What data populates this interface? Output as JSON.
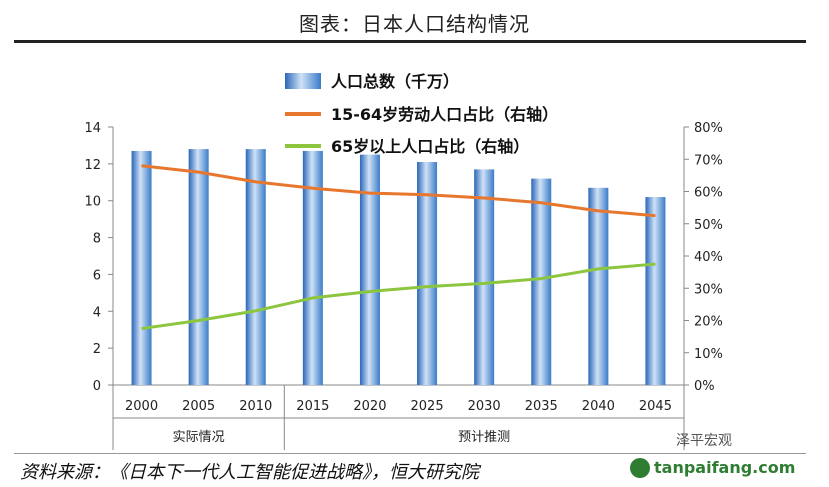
{
  "title": "图表：日本人口结构情况",
  "source": "资料来源：《日本下一代人工智能促进战略》，恒大研究院",
  "watermark": {
    "wechat": "泽平宏观",
    "site": "tanpaifang.com"
  },
  "chart_data": {
    "type": "bar",
    "categories": [
      "2000",
      "2005",
      "2010",
      "2015",
      "2020",
      "2025",
      "2030",
      "2035",
      "2040",
      "2045"
    ],
    "groups": [
      {
        "label": "实际情况",
        "from": 0,
        "to": 2
      },
      {
        "label": "预计推测",
        "from": 3,
        "to": 9
      }
    ],
    "series": [
      {
        "name": "人口总数（千万）",
        "type": "bar",
        "axis": "left",
        "color": "#3a7bc8",
        "values": [
          12.7,
          12.8,
          12.8,
          12.7,
          12.5,
          12.1,
          11.7,
          11.2,
          10.7,
          10.2
        ]
      },
      {
        "name": "15-64岁劳动人口占比（右轴）",
        "type": "line",
        "axis": "right",
        "color": "#e8772e",
        "values": [
          68,
          66,
          63,
          61,
          59.5,
          59,
          58,
          56.5,
          54,
          52.5
        ]
      },
      {
        "name": "65岁以上人口占比（右轴）",
        "type": "line",
        "axis": "right",
        "color": "#8cc63f",
        "values": [
          17.5,
          20,
          23,
          27,
          29,
          30.5,
          31.5,
          33,
          36,
          37.5
        ]
      }
    ],
    "y_left": {
      "min": 0,
      "max": 14,
      "ticks": [
        0,
        2,
        4,
        6,
        8,
        10,
        12,
        14
      ]
    },
    "y_right": {
      "min": 0,
      "max": 80,
      "ticks": [
        "0%",
        "10%",
        "20%",
        "30%",
        "40%",
        "50%",
        "60%",
        "70%",
        "80%"
      ]
    },
    "legend_position": "top-center",
    "grid": false
  }
}
